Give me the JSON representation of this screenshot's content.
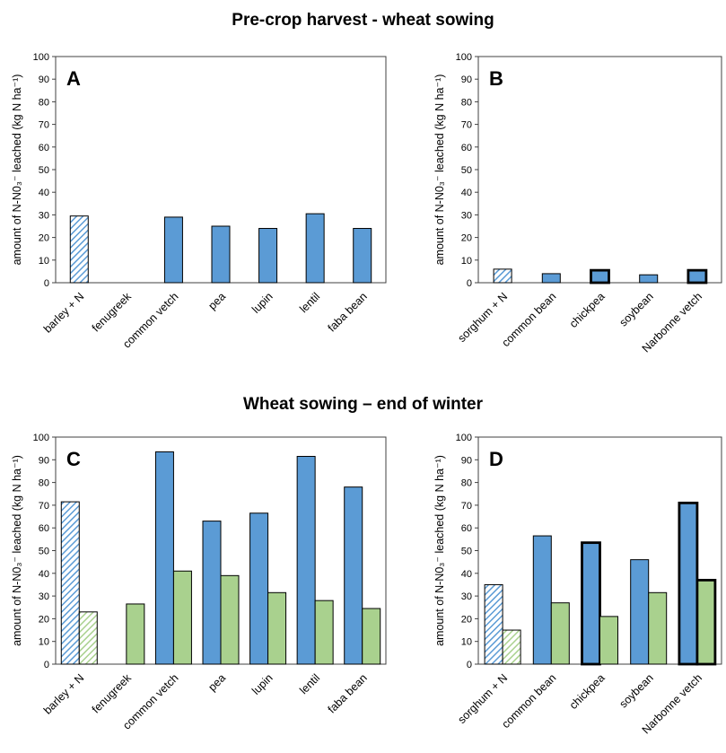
{
  "sections": [
    {
      "title": "Pre-crop harvest - wheat sowing"
    },
    {
      "title": "Wheat sowing – end of winter"
    }
  ],
  "colors": {
    "blue": "#5b9bd5",
    "green": "#a9d18e",
    "stroke": "#000000"
  },
  "chart_data": [
    {
      "id": "A",
      "label": "A",
      "type": "bar",
      "ylabel": "amount of N-N0₃⁻ leached (kg N ha⁻¹)",
      "ylim": [
        0,
        100
      ],
      "yticks": [
        0,
        10,
        20,
        30,
        40,
        50,
        60,
        70,
        80,
        90,
        100
      ],
      "categories": [
        "barley + N",
        "fenugreek",
        "common vetch",
        "pea",
        "lupin",
        "lentil",
        "faba bean"
      ],
      "series": [
        {
          "color": "blue",
          "values": [
            29.5,
            null,
            29,
            25,
            24,
            30.5,
            24
          ],
          "hatched": [
            true,
            false,
            false,
            false,
            false,
            false,
            false
          ],
          "bold": [
            false,
            false,
            false,
            false,
            false,
            false,
            false
          ]
        }
      ]
    },
    {
      "id": "B",
      "label": "B",
      "type": "bar",
      "ylabel": "amount of N-N0₃⁻ leached (kg N ha⁻¹)",
      "ylim": [
        0,
        100
      ],
      "yticks": [
        0,
        10,
        20,
        30,
        40,
        50,
        60,
        70,
        80,
        90,
        100
      ],
      "categories": [
        "sorghum + N",
        "common bean",
        "chickpea",
        "soybean",
        "Narbonne vetch"
      ],
      "series": [
        {
          "color": "blue",
          "values": [
            6,
            4,
            5.5,
            3.5,
            5.5
          ],
          "hatched": [
            true,
            false,
            false,
            false,
            false
          ],
          "bold": [
            false,
            false,
            true,
            false,
            true
          ]
        }
      ]
    },
    {
      "id": "C",
      "label": "C",
      "type": "bar",
      "ylabel": "amount of N-N0₃⁻ leached (kg N ha⁻¹)",
      "ylim": [
        0,
        100
      ],
      "yticks": [
        0,
        10,
        20,
        30,
        40,
        50,
        60,
        70,
        80,
        90,
        100
      ],
      "categories": [
        "barley + N",
        "fenugreek",
        "common vetch",
        "pea",
        "lupin",
        "lentil",
        "faba bean"
      ],
      "series": [
        {
          "color": "blue",
          "values": [
            71.5,
            null,
            93.5,
            63,
            66.5,
            91.5,
            78
          ],
          "hatched": [
            true,
            false,
            false,
            false,
            false,
            false,
            false
          ],
          "bold": [
            false,
            false,
            false,
            false,
            false,
            false,
            false
          ]
        },
        {
          "color": "green",
          "values": [
            23,
            26.5,
            41,
            39,
            31.5,
            28,
            24.5
          ],
          "hatched": [
            true,
            false,
            false,
            false,
            false,
            false,
            false
          ],
          "bold": [
            false,
            false,
            false,
            false,
            false,
            false,
            false
          ]
        }
      ]
    },
    {
      "id": "D",
      "label": "D",
      "type": "bar",
      "ylabel": "amount of N-N0₃⁻ leached (kg N ha⁻¹)",
      "ylim": [
        0,
        100
      ],
      "yticks": [
        0,
        10,
        20,
        30,
        40,
        50,
        60,
        70,
        80,
        90,
        100
      ],
      "categories": [
        "sorghum + N",
        "common bean",
        "chickpea",
        "soybean",
        "Narbonne vetch"
      ],
      "series": [
        {
          "color": "blue",
          "values": [
            35,
            56.5,
            53.5,
            46,
            71
          ],
          "hatched": [
            true,
            false,
            false,
            false,
            false
          ],
          "bold": [
            false,
            false,
            true,
            false,
            true
          ]
        },
        {
          "color": "green",
          "values": [
            15,
            27,
            21,
            31.5,
            37
          ],
          "hatched": [
            true,
            false,
            false,
            false,
            false
          ],
          "bold": [
            false,
            false,
            false,
            false,
            true
          ]
        }
      ]
    }
  ]
}
